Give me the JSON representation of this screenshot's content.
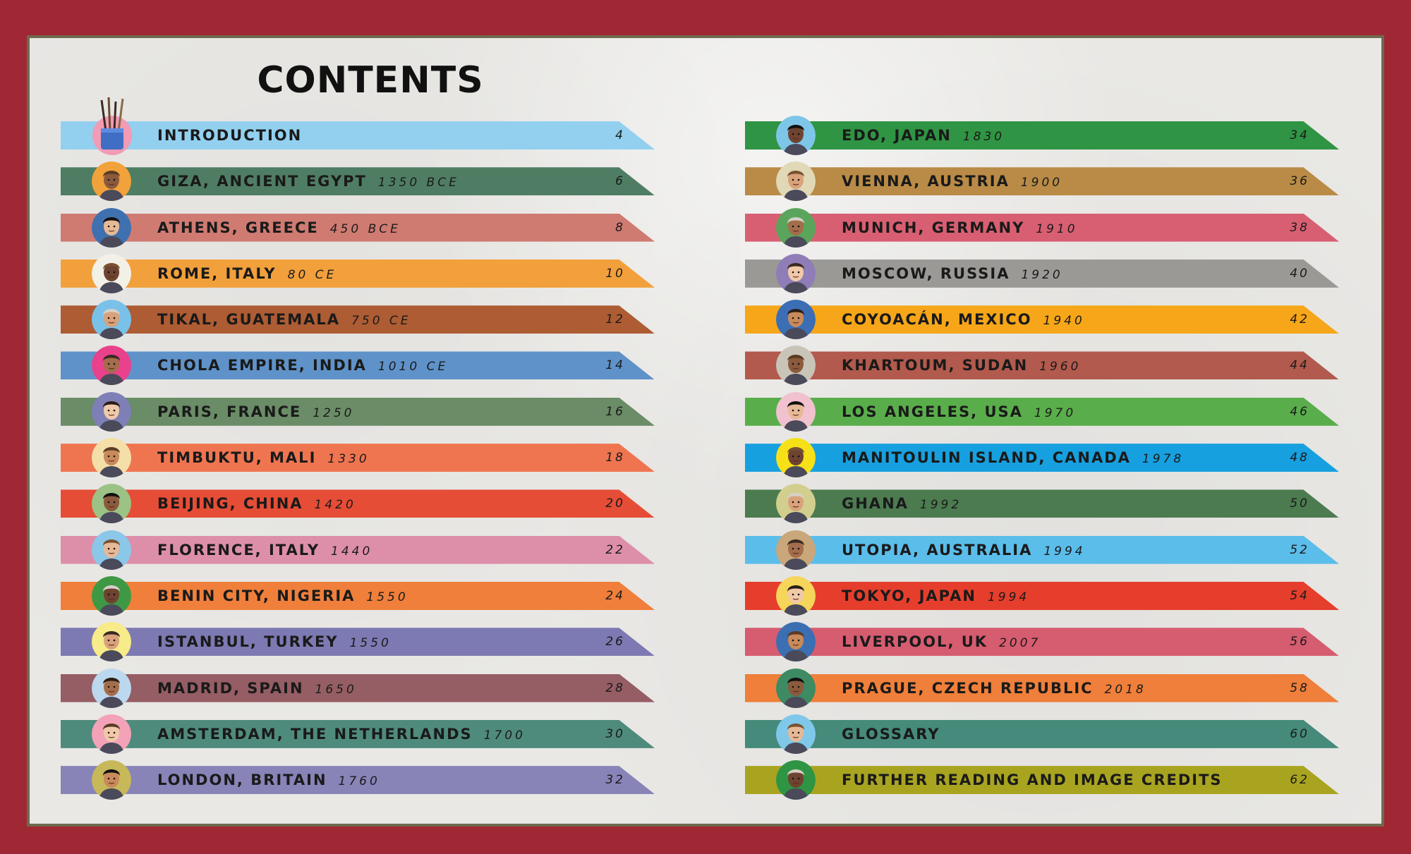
{
  "title": "CONTENTS",
  "left": [
    {
      "label": "INTRODUCTION",
      "year": "",
      "page": "4",
      "color": "#93d0ef",
      "avatar_bg": "#f39ab5",
      "avatar": "paintbrushes-icon"
    },
    {
      "label": "GIZA, ANCIENT EGYPT",
      "year": "1350 BCE",
      "page": "6",
      "color": "#4f7d63",
      "avatar_bg": "#f2a23b",
      "avatar": "portrait-giza"
    },
    {
      "label": "ATHENS, GREECE",
      "year": "450 BCE",
      "page": "8",
      "color": "#cf7b72",
      "avatar_bg": "#3f70b0",
      "avatar": "portrait-athens"
    },
    {
      "label": "ROME, ITALY",
      "year": "80 CE",
      "page": "10",
      "color": "#f2a03b",
      "avatar_bg": "#f3f0e8",
      "avatar": "portrait-rome"
    },
    {
      "label": "TIKAL, GUATEMALA",
      "year": "750 CE",
      "page": "12",
      "color": "#ad5c33",
      "avatar_bg": "#7ac1ea",
      "avatar": "portrait-tikal"
    },
    {
      "label": "CHOLA EMPIRE, INDIA",
      "year": "1010 CE",
      "page": "14",
      "color": "#5f92c9",
      "avatar_bg": "#e9418c",
      "avatar": "portrait-chola"
    },
    {
      "label": "PARIS, FRANCE",
      "year": "1250",
      "page": "16",
      "color": "#6a8c66",
      "avatar_bg": "#7e7fb6",
      "avatar": "portrait-paris"
    },
    {
      "label": "TIMBUKTU, MALI",
      "year": "1330",
      "page": "18",
      "color": "#ef7550",
      "avatar_bg": "#f3dfa7",
      "avatar": "portrait-timbuktu"
    },
    {
      "label": "BEIJING, CHINA",
      "year": "1420",
      "page": "20",
      "color": "#e64d36",
      "avatar_bg": "#9cc286",
      "avatar": "portrait-beijing"
    },
    {
      "label": "FLORENCE, ITALY",
      "year": "1440",
      "page": "22",
      "color": "#dd8faa",
      "avatar_bg": "#8bc7e8",
      "avatar": "portrait-florence"
    },
    {
      "label": "BENIN CITY, NIGERIA",
      "year": "1550",
      "page": "24",
      "color": "#ef7f3a",
      "avatar_bg": "#3f9944",
      "avatar": "portrait-benin"
    },
    {
      "label": "ISTANBUL, TURKEY",
      "year": "1550",
      "page": "26",
      "color": "#7d79b2",
      "avatar_bg": "#f7eb8a",
      "avatar": "portrait-istanbul"
    },
    {
      "label": "MADRID, SPAIN",
      "year": "1650",
      "page": "28",
      "color": "#955d64",
      "avatar_bg": "#bcd8ee",
      "avatar": "portrait-madrid"
    },
    {
      "label": "AMSTERDAM, THE NETHERLANDS",
      "year": "1700",
      "page": "30",
      "color": "#4f8b7d",
      "avatar_bg": "#f3a2b7",
      "avatar": "portrait-amsterdam"
    },
    {
      "label": "LONDON, BRITAIN",
      "year": "1760",
      "page": "32",
      "color": "#8884b8",
      "avatar_bg": "#c7b85a",
      "avatar": "portrait-london"
    }
  ],
  "right": [
    {
      "label": "EDO, JAPAN",
      "year": "1830",
      "page": "34",
      "color": "#2f9443",
      "avatar_bg": "#7ec6e8",
      "avatar": "portrait-edo"
    },
    {
      "label": "VIENNA, AUSTRIA",
      "year": "1900",
      "page": "36",
      "color": "#b98b46",
      "avatar_bg": "#e0d8b7",
      "avatar": "portrait-vienna"
    },
    {
      "label": "MUNICH, GERMANY",
      "year": "1910",
      "page": "38",
      "color": "#d85f72",
      "avatar_bg": "#5aa55b",
      "avatar": "portrait-munich"
    },
    {
      "label": "MOSCOW, RUSSIA",
      "year": "1920",
      "page": "40",
      "color": "#9a9996",
      "avatar_bg": "#8f7db7",
      "avatar": "portrait-moscow"
    },
    {
      "label": "COYOACÁN, MEXICO",
      "year": "1940",
      "page": "42",
      "color": "#f6a618",
      "avatar_bg": "#3b6eb5",
      "avatar": "portrait-coyoacan"
    },
    {
      "label": "KHARTOUM, SUDAN",
      "year": "1960",
      "page": "44",
      "color": "#b25a4d",
      "avatar_bg": "#c9c4b8",
      "avatar": "portrait-khartoum"
    },
    {
      "label": "LOS ANGELES, USA",
      "year": "1970",
      "page": "46",
      "color": "#5aad4b",
      "avatar_bg": "#f1c1cf",
      "avatar": "portrait-los-angeles"
    },
    {
      "label": "MANITOULIN ISLAND, CANADA",
      "year": "1978",
      "page": "48",
      "color": "#17a0df",
      "avatar_bg": "#f6e118",
      "avatar": "portrait-manitoulin"
    },
    {
      "label": "GHANA",
      "year": "1992",
      "page": "50",
      "color": "#4c7b50",
      "avatar_bg": "#d2cf8e",
      "avatar": "portrait-ghana"
    },
    {
      "label": "UTOPIA, AUSTRALIA",
      "year": "1994",
      "page": "52",
      "color": "#5bbdea",
      "avatar_bg": "#c9a77a",
      "avatar": "portrait-utopia"
    },
    {
      "label": "TOKYO, JAPAN",
      "year": "1994",
      "page": "54",
      "color": "#e63e2c",
      "avatar_bg": "#f5d55a",
      "avatar": "portrait-tokyo"
    },
    {
      "label": "LIVERPOOL, UK",
      "year": "2007",
      "page": "56",
      "color": "#d65c70",
      "avatar_bg": "#3b6fb2",
      "avatar": "portrait-liverpool"
    },
    {
      "label": "PRAGUE, CZECH REPUBLIC",
      "year": "2018",
      "page": "58",
      "color": "#ef7f3a",
      "avatar_bg": "#3d8a63",
      "avatar": "portrait-prague"
    },
    {
      "label": "GLOSSARY",
      "year": "",
      "page": "60",
      "color": "#458a7a",
      "avatar_bg": "#7fc8ea",
      "avatar": "portrait-glossary"
    },
    {
      "label": "FURTHER READING AND IMAGE CREDITS",
      "year": "",
      "page": "62",
      "color": "#a9a420",
      "avatar_bg": "#2f9443",
      "avatar": "portrait-further-reading"
    }
  ]
}
